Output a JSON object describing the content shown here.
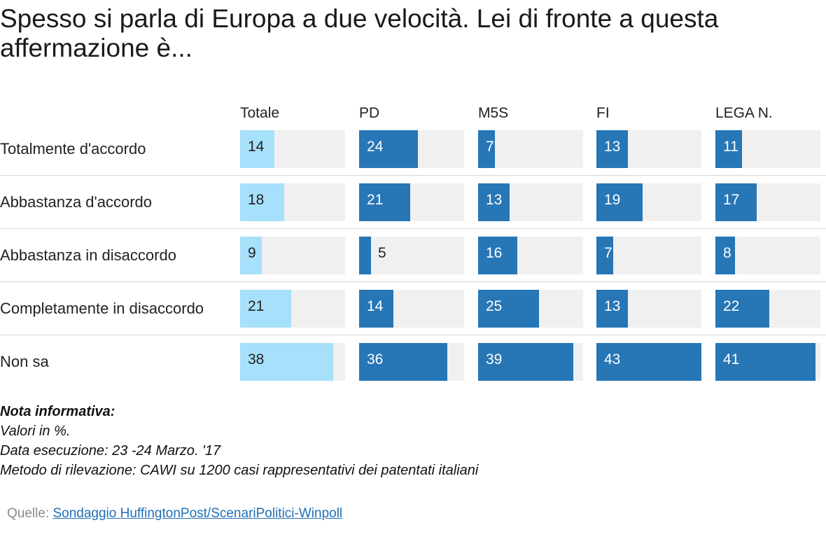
{
  "chart_data": {
    "type": "bar",
    "title": "Spesso si parla di Europa a due velocità. Lei di fronte a questa affermazione è...",
    "categories": [
      "Totalmente d'accordo",
      "Abbastanza d'accordo",
      "Abbastanza in disaccordo",
      "Completamente in disaccordo",
      "Non sa"
    ],
    "series": [
      {
        "name": "Totale",
        "values": [
          14,
          18,
          9,
          21,
          38
        ]
      },
      {
        "name": "PD",
        "values": [
          24,
          21,
          5,
          14,
          36
        ]
      },
      {
        "name": "M5S",
        "values": [
          7,
          13,
          16,
          25,
          39
        ]
      },
      {
        "name": "FI",
        "values": [
          13,
          19,
          7,
          13,
          43
        ]
      },
      {
        "name": "LEGA N.",
        "values": [
          11,
          17,
          8,
          22,
          41
        ]
      }
    ],
    "xlim": [
      0,
      43
    ],
    "colors": {
      "Totale": "#a6e0fa",
      "parties": "#2776b6",
      "track": "#f0f0f0"
    }
  },
  "notes": {
    "heading": "Nota informativa:",
    "lines": [
      "Valori in %.",
      "Data esecuzione: 23 -24  Marzo. '17",
      "Metodo di rilevazione: CAWI su 1200 casi rappresentativi dei patentati italiani"
    ]
  },
  "source": {
    "label": "Quelle:",
    "link_text": "Sondaggio HuffingtonPost/ScenariPolitici-Winpoll"
  }
}
